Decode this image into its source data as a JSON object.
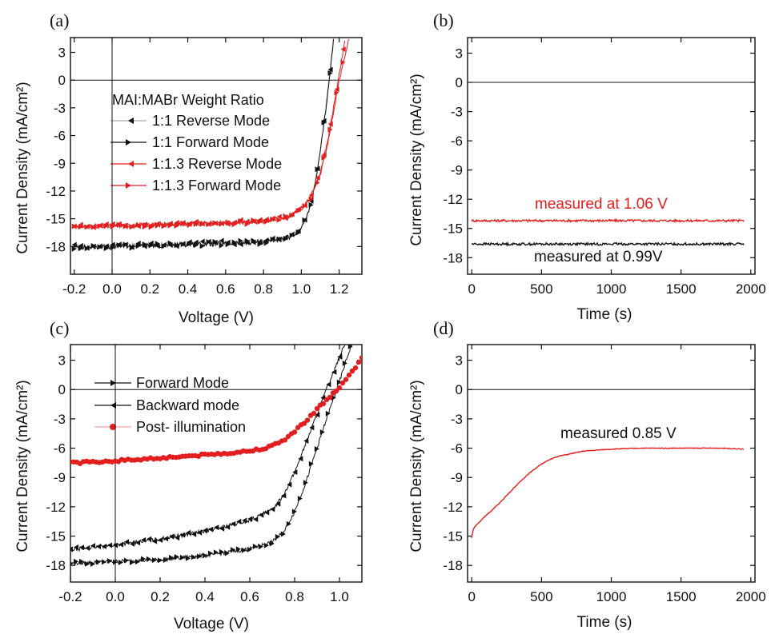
{
  "colors": {
    "black": "#111111",
    "red": "#e31e1e",
    "pink": "#f3a3a3",
    "gray": "#aaaaaa"
  },
  "chart_data": [
    {
      "panel": "(a)",
      "type": "line",
      "xlabel": "Voltage (V)",
      "ylabel": "Current Density (mA/cm²)",
      "xlim": [
        -0.22,
        1.32
      ],
      "ylim": [
        -21,
        4.6
      ],
      "xticks": [
        "-0.2",
        "0.0",
        "0.2",
        "0.4",
        "0.6",
        "0.8",
        "1.0",
        "1.2"
      ],
      "yticks": [
        "3",
        "0",
        "-3",
        "-6",
        "-9",
        "-12",
        "-15",
        "-18"
      ],
      "legend_title": "MAI:MABr Weight Ratio",
      "series": [
        {
          "name": "1:1 Reverse Mode",
          "x": [
            -0.2,
            0.0,
            0.2,
            0.4,
            0.6,
            0.8,
            0.9,
            0.95,
            1.0,
            1.03,
            1.06,
            1.09,
            1.12,
            1.15,
            1.17
          ],
          "y": [
            -18.0,
            -17.9,
            -17.8,
            -17.7,
            -17.6,
            -17.4,
            -17.1,
            -16.8,
            -15.9,
            -14.6,
            -12.5,
            -9.0,
            -4.5,
            0.5,
            4.5
          ]
        },
        {
          "name": "1:1 Forward Mode",
          "x": [
            -0.2,
            0.0,
            0.2,
            0.4,
            0.6,
            0.8,
            0.9,
            0.95,
            1.0,
            1.03,
            1.06,
            1.09,
            1.12,
            1.15,
            1.17
          ],
          "y": [
            -18.1,
            -18.0,
            -17.9,
            -17.8,
            -17.7,
            -17.5,
            -17.2,
            -16.9,
            -16.0,
            -14.8,
            -12.7,
            -9.2,
            -4.7,
            0.3,
            4.3
          ]
        },
        {
          "name": "1:1.3 Reverse Mode",
          "x": [
            -0.2,
            0.0,
            0.2,
            0.4,
            0.6,
            0.8,
            0.9,
            0.95,
            1.0,
            1.05,
            1.1,
            1.14,
            1.17,
            1.2,
            1.23
          ],
          "y": [
            -15.8,
            -15.7,
            -15.6,
            -15.5,
            -15.4,
            -15.2,
            -14.9,
            -14.6,
            -13.9,
            -12.6,
            -10.0,
            -6.5,
            -3.0,
            0.5,
            4.2
          ]
        },
        {
          "name": "1:1.3 Forward Mode",
          "x": [
            -0.2,
            0.0,
            0.2,
            0.4,
            0.6,
            0.8,
            0.9,
            0.95,
            1.0,
            1.05,
            1.1,
            1.14,
            1.17,
            1.2,
            1.25
          ],
          "y": [
            -15.9,
            -15.8,
            -15.7,
            -15.6,
            -15.5,
            -15.3,
            -15.0,
            -14.7,
            -14.0,
            -12.8,
            -10.2,
            -6.8,
            -3.4,
            0.0,
            4.3
          ]
        }
      ]
    },
    {
      "panel": "(b)",
      "type": "line",
      "xlabel": "Time (s)",
      "ylabel": "Current Density (mA/cm²)",
      "xlim": [
        -30,
        2030
      ],
      "ylim": [
        -19.7,
        4.6
      ],
      "xticks": [
        "0",
        "500",
        "1000",
        "1500",
        "2000"
      ],
      "yticks": [
        "3",
        "0",
        "-3",
        "-6",
        "-9",
        "-12",
        "-15",
        "-18"
      ],
      "series": [
        {
          "x": [
            0,
            1950
          ],
          "y": [
            -14.2,
            -14.2
          ]
        },
        {
          "x": [
            0,
            1950
          ],
          "y": [
            -16.6,
            -16.6
          ]
        }
      ],
      "annotations": [
        "measured at 1.06 V",
        "measured at 0.99V"
      ]
    },
    {
      "panel": "(c)",
      "type": "line",
      "xlabel": "Voltage (V)",
      "ylabel": "Current Density (mA/cm²)",
      "xlim": [
        -0.2,
        1.1
      ],
      "ylim": [
        -19.7,
        4.6
      ],
      "xticks": [
        "-0.2",
        "0.0",
        "0.2",
        "0.4",
        "0.6",
        "0.8",
        "1.0"
      ],
      "yticks": [
        "3",
        "0",
        "-3",
        "-6",
        "-9",
        "-12",
        "-15",
        "-18"
      ],
      "series": [
        {
          "name": "Forward Mode",
          "x": [
            -0.2,
            0.0,
            0.2,
            0.4,
            0.6,
            0.7,
            0.75,
            0.8,
            0.85,
            0.9,
            0.95,
            1.0,
            1.03,
            1.06
          ],
          "y": [
            -17.8,
            -17.6,
            -17.4,
            -17.0,
            -16.3,
            -15.6,
            -14.6,
            -12.5,
            -9.5,
            -6.0,
            -2.5,
            0.8,
            3.0,
            5.0
          ]
        },
        {
          "name": "Backward mode",
          "x": [
            -0.2,
            0.0,
            0.2,
            0.4,
            0.6,
            0.7,
            0.75,
            0.8,
            0.85,
            0.9,
            0.95,
            1.0,
            1.03
          ],
          "y": [
            -16.4,
            -15.9,
            -15.3,
            -14.5,
            -13.4,
            -12.3,
            -10.8,
            -8.5,
            -5.5,
            -2.5,
            0.5,
            3.3,
            5.0
          ]
        },
        {
          "name": "Post- illumination",
          "x": [
            -0.2,
            0.0,
            0.2,
            0.4,
            0.6,
            0.7,
            0.75,
            0.8,
            0.85,
            0.9,
            0.95,
            1.0,
            1.05,
            1.1
          ],
          "y": [
            -7.5,
            -7.3,
            -7.0,
            -6.7,
            -6.3,
            -5.8,
            -5.2,
            -4.3,
            -3.2,
            -2.0,
            -0.9,
            0.2,
            1.6,
            3.3
          ]
        }
      ]
    },
    {
      "panel": "(d)",
      "type": "line",
      "xlabel": "Time (s)",
      "ylabel": "Current Density (mA/cm²)",
      "xlim": [
        -30,
        2030
      ],
      "ylim": [
        -19.7,
        4.6
      ],
      "xticks": [
        "0",
        "500",
        "1000",
        "1500",
        "2000"
      ],
      "yticks": [
        "3",
        "0",
        "-3",
        "-6",
        "-9",
        "-12",
        "-15",
        "-18"
      ],
      "series": [
        {
          "x": [
            0,
            10,
            30,
            60,
            100,
            150,
            200,
            300,
            400,
            500,
            600,
            800,
            1000,
            1200,
            1500,
            1800,
            1950
          ],
          "y": [
            -15.2,
            -14.3,
            -13.9,
            -13.5,
            -12.9,
            -12.3,
            -11.6,
            -10.1,
            -8.7,
            -7.6,
            -6.9,
            -6.3,
            -6.1,
            -6.0,
            -6.0,
            -6.0,
            -6.1
          ]
        }
      ],
      "annotations": [
        "measured 0.85 V"
      ]
    }
  ]
}
